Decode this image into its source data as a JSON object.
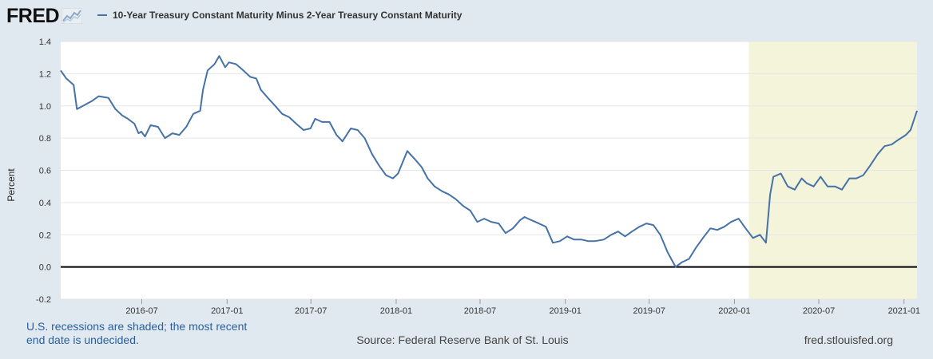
{
  "header": {
    "logo_text": "FRED",
    "logo_icon": "chart-line-icon",
    "series_title": "10-Year Treasury Constant Maturity Minus 2-Year Treasury Constant Maturity"
  },
  "footer": {
    "recession_note": "U.S. recessions are shaded; the most recent end date is undecided.",
    "source": "Source: Federal Reserve Bank of St. Louis",
    "site": "fred.stlouisfed.org"
  },
  "colors": {
    "series": "#4572a7",
    "recession_shade": "#f4f4db",
    "zero_line": "#000000",
    "grid": "#e6e6e6"
  },
  "chart_data": {
    "type": "line",
    "ylabel": "Percent",
    "xlabel": "",
    "ylim": [
      -0.2,
      1.4
    ],
    "yticks": [
      -0.2,
      0.0,
      0.2,
      0.4,
      0.6,
      0.8,
      1.0,
      1.2,
      1.4
    ],
    "ytick_labels": [
      "-0.2",
      "0.0",
      "0.2",
      "0.4",
      "0.6",
      "0.8",
      "1.0",
      "1.2",
      "1.4"
    ],
    "xlim": [
      "2016-01-08",
      "2021-01-29"
    ],
    "xticks": [
      "2016-07",
      "2017-01",
      "2017-07",
      "2018-01",
      "2018-07",
      "2019-01",
      "2019-07",
      "2020-01",
      "2020-07",
      "2021-01"
    ],
    "grid": true,
    "legend": "top-left",
    "recession_shading": [
      {
        "start": "2020-02",
        "end": "2021-01-29"
      }
    ],
    "reference_line": 0.0,
    "series": [
      {
        "name": "10-Year Treasury Constant Maturity Minus 2-Year Treasury Constant Maturity",
        "x": [
          "2016-01-08",
          "2016-01-20",
          "2016-02-05",
          "2016-02-12",
          "2016-02-25",
          "2016-03-15",
          "2016-03-30",
          "2016-04-20",
          "2016-05-05",
          "2016-05-20",
          "2016-06-01",
          "2016-06-15",
          "2016-06-24",
          "2016-06-30",
          "2016-07-08",
          "2016-07-20",
          "2016-08-05",
          "2016-08-20",
          "2016-09-05",
          "2016-09-20",
          "2016-10-05",
          "2016-10-20",
          "2016-11-04",
          "2016-11-10",
          "2016-11-20",
          "2016-12-05",
          "2016-12-15",
          "2016-12-28",
          "2017-01-05",
          "2017-01-20",
          "2017-02-05",
          "2017-02-20",
          "2017-03-05",
          "2017-03-15",
          "2017-03-30",
          "2017-04-15",
          "2017-04-30",
          "2017-05-15",
          "2017-05-30",
          "2017-06-15",
          "2017-06-30",
          "2017-07-10",
          "2017-07-25",
          "2017-08-10",
          "2017-08-25",
          "2017-09-07",
          "2017-09-25",
          "2017-10-10",
          "2017-10-25",
          "2017-11-10",
          "2017-11-25",
          "2017-12-10",
          "2017-12-25",
          "2018-01-05",
          "2018-01-25",
          "2018-02-10",
          "2018-02-25",
          "2018-03-10",
          "2018-03-25",
          "2018-04-10",
          "2018-04-25",
          "2018-05-10",
          "2018-05-25",
          "2018-06-10",
          "2018-06-25",
          "2018-07-10",
          "2018-07-25",
          "2018-08-10",
          "2018-08-25",
          "2018-09-10",
          "2018-09-25",
          "2018-10-05",
          "2018-10-20",
          "2018-11-05",
          "2018-11-20",
          "2018-12-05",
          "2018-12-20",
          "2019-01-05",
          "2019-01-20",
          "2019-02-05",
          "2019-02-20",
          "2019-03-05",
          "2019-03-25",
          "2019-04-10",
          "2019-04-25",
          "2019-05-10",
          "2019-05-25",
          "2019-06-10",
          "2019-06-25",
          "2019-07-10",
          "2019-07-25",
          "2019-08-10",
          "2019-08-27",
          "2019-09-10",
          "2019-09-25",
          "2019-10-10",
          "2019-10-25",
          "2019-11-10",
          "2019-11-25",
          "2019-12-10",
          "2019-12-25",
          "2020-01-10",
          "2020-01-25",
          "2020-02-10",
          "2020-02-25",
          "2020-03-09",
          "2020-03-18",
          "2020-03-25",
          "2020-04-10",
          "2020-04-25",
          "2020-05-10",
          "2020-05-25",
          "2020-06-05",
          "2020-06-20",
          "2020-07-05",
          "2020-07-20",
          "2020-08-05",
          "2020-08-20",
          "2020-09-05",
          "2020-09-20",
          "2020-10-05",
          "2020-10-20",
          "2020-11-05",
          "2020-11-20",
          "2020-12-05",
          "2020-12-20",
          "2021-01-05",
          "2021-01-15",
          "2021-01-29"
        ],
        "values": [
          1.22,
          1.17,
          1.13,
          0.98,
          1.0,
          1.03,
          1.06,
          1.05,
          0.98,
          0.94,
          0.92,
          0.89,
          0.83,
          0.84,
          0.81,
          0.88,
          0.87,
          0.8,
          0.83,
          0.82,
          0.87,
          0.95,
          0.97,
          1.1,
          1.22,
          1.26,
          1.31,
          1.24,
          1.27,
          1.26,
          1.22,
          1.18,
          1.17,
          1.1,
          1.05,
          1.0,
          0.95,
          0.93,
          0.89,
          0.85,
          0.86,
          0.92,
          0.9,
          0.9,
          0.82,
          0.78,
          0.86,
          0.85,
          0.8,
          0.7,
          0.63,
          0.57,
          0.55,
          0.58,
          0.72,
          0.67,
          0.62,
          0.55,
          0.5,
          0.47,
          0.45,
          0.42,
          0.38,
          0.35,
          0.28,
          0.3,
          0.28,
          0.27,
          0.21,
          0.24,
          0.29,
          0.31,
          0.29,
          0.27,
          0.25,
          0.15,
          0.16,
          0.19,
          0.17,
          0.17,
          0.16,
          0.16,
          0.17,
          0.2,
          0.22,
          0.19,
          0.22,
          0.25,
          0.27,
          0.26,
          0.2,
          0.09,
          0.0,
          0.03,
          0.05,
          0.12,
          0.18,
          0.24,
          0.23,
          0.25,
          0.28,
          0.3,
          0.24,
          0.18,
          0.2,
          0.15,
          0.45,
          0.56,
          0.58,
          0.5,
          0.48,
          0.55,
          0.52,
          0.5,
          0.56,
          0.5,
          0.5,
          0.48,
          0.55,
          0.55,
          0.57,
          0.63,
          0.7,
          0.75,
          0.76,
          0.79,
          0.82,
          0.85,
          0.97
        ]
      }
    ]
  }
}
